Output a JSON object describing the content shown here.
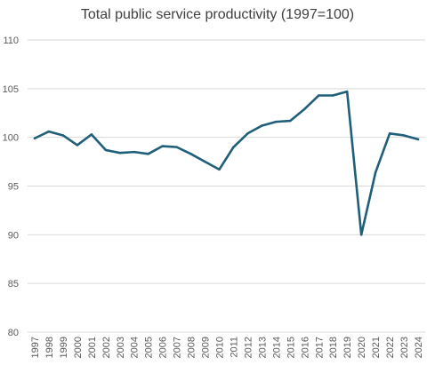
{
  "chart_data": {
    "type": "line",
    "title": "Total public service productivity (1997=100)",
    "xlabel": "",
    "ylabel": "",
    "ylim": [
      80,
      110
    ],
    "yticks": [
      80,
      85,
      90,
      95,
      100,
      105,
      110
    ],
    "grid": true,
    "legend": "none",
    "line_color": "#1f5f7a",
    "x": [
      "1997",
      "1998",
      "1999",
      "2000",
      "2001",
      "2002",
      "2003",
      "2004",
      "2005",
      "2006",
      "2007",
      "2008",
      "2009",
      "2010",
      "2011",
      "2012",
      "2013",
      "2014",
      "2015",
      "2016",
      "2017",
      "2018",
      "2019",
      "2020",
      "2021",
      "2022",
      "2023",
      "2024"
    ],
    "series": [
      {
        "values": [
          99.9,
          100.6,
          100.2,
          99.2,
          100.3,
          98.7,
          98.4,
          98.5,
          98.3,
          99.1,
          99.0,
          98.3,
          97.5,
          96.7,
          99.0,
          100.4,
          101.2,
          101.6,
          101.7,
          102.9,
          104.3,
          104.3,
          104.7,
          90.0,
          96.4,
          100.4,
          100.2,
          99.8
        ]
      }
    ]
  }
}
